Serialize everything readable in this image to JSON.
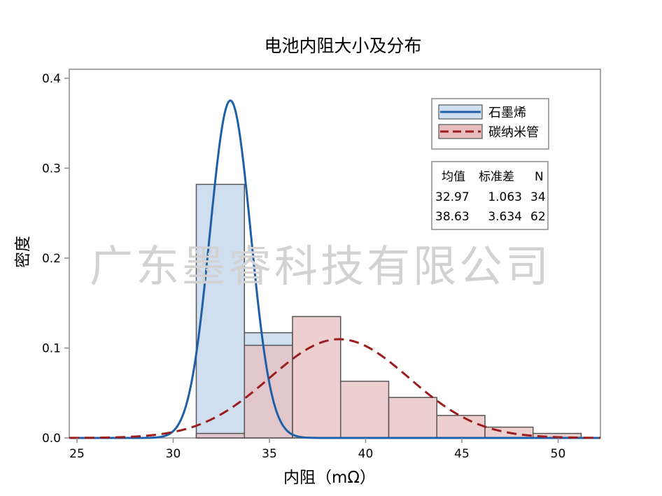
{
  "chart_data": {
    "type": "histogram",
    "title": "电池内阻大小及分布",
    "xlabel": "内阻（mΩ）",
    "ylabel": "密度",
    "xlim": [
      24.6,
      52.2
    ],
    "ylim": [
      0,
      0.41
    ],
    "xticks": [
      "25",
      "30",
      "35",
      "40",
      "45",
      "50"
    ],
    "yticks": [
      "0.0",
      "0.1",
      "0.2",
      "0.3",
      "0.4"
    ],
    "grid": false,
    "legend_position": "top-right",
    "series": [
      {
        "name": "石墨烯",
        "color": "#1f5fa8",
        "fill": "#cfdff0",
        "line_style": "solid",
        "bin_edges": [
          31.2,
          33.7,
          36.2
        ],
        "densities": [
          0.282,
          0.117
        ],
        "fit": {
          "mean": 32.97,
          "std": 1.063,
          "n": 34
        }
      },
      {
        "name": "碳纳米管",
        "color": "#9b1d1d",
        "fill": "#e8bdbd",
        "line_style": "dashed",
        "bin_edges": [
          31.2,
          33.7,
          36.2,
          38.7,
          41.2,
          43.7,
          46.2,
          48.7,
          51.2
        ],
        "densities": [
          0.005,
          0.103,
          0.135,
          0.063,
          0.045,
          0.025,
          0.012,
          0.005
        ],
        "fit": {
          "mean": 38.63,
          "std": 3.634,
          "n": 62
        }
      }
    ],
    "stats_table": {
      "headers": [
        "均值",
        "标准差",
        "N"
      ],
      "rows": [
        [
          "32.97",
          "1.063",
          "34"
        ],
        [
          "38.63",
          "3.634",
          "62"
        ]
      ]
    },
    "watermark": "广东墨睿科技有限公司"
  }
}
